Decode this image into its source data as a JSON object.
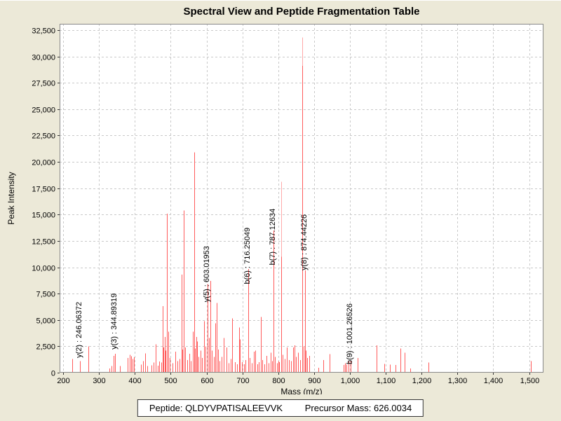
{
  "title": "Spectral View and Peptide Fragmentation Table",
  "footer": {
    "peptide_label": "Peptide: QLDYVPATISALEEVVK",
    "precursor_label": "Precursor Mass: 626.0034"
  },
  "chart_data": {
    "type": "bar",
    "title": "Spectral View and Peptide Fragmentation Table",
    "xlabel": "Mass (m/z)",
    "ylabel": "Peak Intensity",
    "xlim": [
      190,
      1540
    ],
    "ylim": [
      0,
      33100
    ],
    "grid": true,
    "legend": "none",
    "x_ticks": [
      200,
      300,
      400,
      500,
      600,
      700,
      800,
      900,
      1000,
      1100,
      1200,
      1300,
      1400,
      1500
    ],
    "x_tick_labels": [
      "200",
      "300",
      "400",
      "500",
      "600",
      "700",
      "800",
      "900",
      "1,000",
      "1,100",
      "1,200",
      "1,300",
      "1,400",
      "1,500"
    ],
    "y_ticks": [
      0,
      2500,
      5000,
      7500,
      10000,
      12500,
      15000,
      17500,
      20000,
      22500,
      25000,
      27500,
      30000,
      32500
    ],
    "y_tick_labels": [
      "0",
      "2,500",
      "5,000",
      "7,500",
      "10,000",
      "12,500",
      "15,000",
      "17,500",
      "20,000",
      "22,500",
      "25,000",
      "27,500",
      "30,000",
      "32,500"
    ],
    "colors": {
      "background": "#ece9d8",
      "plot_background": "#ffffff",
      "grid": "#c9c9c9",
      "border": "#888888",
      "tick": "#333333",
      "text": "#000000",
      "peak": "#ff5b5b",
      "peak_light": "#ffa8a8"
    },
    "peaks": [
      [
        225,
        1300
      ],
      [
        246.06372,
        1100
      ],
      [
        270,
        2500
      ],
      [
        328,
        400
      ],
      [
        335,
        620
      ],
      [
        341.5,
        1600
      ],
      [
        344.89319,
        1780
      ],
      [
        358,
        620
      ],
      [
        379,
        1400
      ],
      [
        386,
        1700
      ],
      [
        390,
        1550
      ],
      [
        393,
        1280
      ],
      [
        398,
        1450
      ],
      [
        416,
        780
      ],
      [
        422,
        1100
      ],
      [
        429,
        1840
      ],
      [
        435,
        620
      ],
      [
        447,
        700
      ],
      [
        452,
        950
      ],
      [
        458,
        2700
      ],
      [
        463,
        650
      ],
      [
        468,
        1050
      ],
      [
        474,
        950
      ],
      [
        478,
        6300
      ],
      [
        480.5,
        2400
      ],
      [
        483,
        3400
      ],
      [
        486,
        2100
      ],
      [
        489,
        15100
      ],
      [
        493,
        3900
      ],
      [
        497,
        1400
      ],
      [
        505,
        900
      ],
      [
        512,
        2000
      ],
      [
        519,
        1100
      ],
      [
        524,
        1300
      ],
      [
        530,
        9300
      ],
      [
        533,
        2200
      ],
      [
        537,
        15400
      ],
      [
        541,
        2400
      ],
      [
        546,
        1200
      ],
      [
        551,
        1800
      ],
      [
        556,
        1100
      ],
      [
        562,
        3900
      ],
      [
        565,
        20900
      ],
      [
        568.5,
        2300
      ],
      [
        571,
        3400
      ],
      [
        574,
        2950
      ],
      [
        578,
        1500
      ],
      [
        583,
        2100
      ],
      [
        588,
        1400
      ],
      [
        593,
        4900
      ],
      [
        597,
        2500
      ],
      [
        603.01953,
        8400
      ],
      [
        607,
        3300
      ],
      [
        611,
        8700
      ],
      [
        615,
        2100
      ],
      [
        620,
        1500
      ],
      [
        624,
        4700
      ],
      [
        628,
        6600
      ],
      [
        633,
        2200
      ],
      [
        637,
        1100
      ],
      [
        642,
        1500
      ],
      [
        648,
        3300
      ],
      [
        656,
        2400
      ],
      [
        661,
        900
      ],
      [
        668,
        1300
      ],
      [
        672,
        5150
      ],
      [
        679,
        1000
      ],
      [
        685,
        800
      ],
      [
        690,
        4300
      ],
      [
        693,
        3150
      ],
      [
        698,
        1000
      ],
      [
        704,
        800
      ],
      [
        709,
        1200
      ],
      [
        716.25049,
        9850
      ],
      [
        720,
        1400
      ],
      [
        726,
        900
      ],
      [
        731,
        2000
      ],
      [
        736,
        2100
      ],
      [
        741,
        800
      ],
      [
        745,
        1000
      ],
      [
        751,
        5270
      ],
      [
        755,
        1200
      ],
      [
        762,
        800
      ],
      [
        768,
        1600
      ],
      [
        774,
        900
      ],
      [
        779,
        1900
      ],
      [
        783,
        1100
      ],
      [
        787.12634,
        13500
      ],
      [
        791,
        1500
      ],
      [
        796,
        900
      ],
      [
        800,
        1100
      ],
      [
        803,
        1000
      ],
      [
        808,
        18100,
        1
      ],
      [
        808,
        11000
      ],
      [
        813,
        1700
      ],
      [
        818,
        1300
      ],
      [
        824,
        2400
      ],
      [
        830,
        1200
      ],
      [
        836,
        1100
      ],
      [
        842,
        2400
      ],
      [
        846,
        2600
      ],
      [
        850,
        1500
      ],
      [
        855,
        1900
      ],
      [
        861,
        1200
      ],
      [
        867,
        31800,
        1
      ],
      [
        867,
        29100
      ],
      [
        871,
        2500
      ],
      [
        874.44226,
        9700
      ],
      [
        877.5,
        2100
      ],
      [
        881,
        1400
      ],
      [
        886,
        1600
      ],
      [
        912,
        450
      ],
      [
        925,
        1200
      ],
      [
        944,
        1750
      ],
      [
        983,
        730
      ],
      [
        987,
        910
      ],
      [
        991,
        780
      ],
      [
        996,
        1060
      ],
      [
        1001.26526,
        1100
      ],
      [
        1022,
        1400
      ],
      [
        1075,
        2600
      ],
      [
        1095,
        840
      ],
      [
        1111,
        780
      ],
      [
        1127,
        730
      ],
      [
        1140,
        2280
      ],
      [
        1152,
        1880
      ],
      [
        1169,
        400
      ],
      [
        1220,
        950
      ],
      [
        1505,
        1100
      ]
    ],
    "annotations": [
      {
        "text": "y(2) : 246.06372",
        "mz": 246.06372,
        "label_base": 1400
      },
      {
        "text": "y(3) : 344.89319",
        "mz": 344.89319,
        "label_base": 2200
      },
      {
        "text": "y(5) : 603.01953",
        "mz": 603.01953,
        "label_base": 6700
      },
      {
        "text": "b(6) : 716.25049",
        "mz": 716.25049,
        "label_base": 8400
      },
      {
        "text": "b(7) : 787.12634",
        "mz": 787.12634,
        "label_base": 10200
      },
      {
        "text": "y(8) : 874.44226",
        "mz": 874.44226,
        "label_base": 9700
      },
      {
        "text": "b(9) : 1001.26526",
        "mz": 1001.26526,
        "label_base": 800
      }
    ]
  }
}
